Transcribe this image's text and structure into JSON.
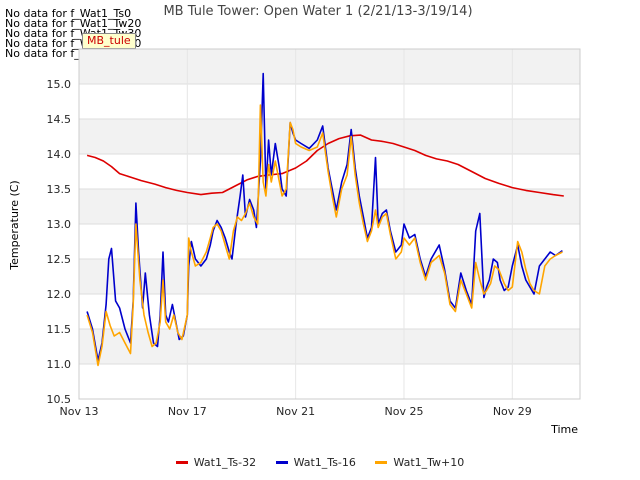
{
  "no_data_messages": [
    "No data for f_Wat1_Ts0",
    "No data for f_Wat1_Tw20",
    "No data for f_Wat1_Tw30",
    "No data for f_Wat1_Tw40",
    "No data for f_Wat1_Tw50"
  ],
  "badge_text": "MB_tule",
  "colors": {
    "Wat1_Ts-32": "#dd0000",
    "Wat1_Ts-16": "#0000cc",
    "Wat1_Tw+10": "#ffa500"
  },
  "chart_data": {
    "type": "line",
    "title": "MB Tule Tower: Open Water 1 (2/21/13-3/19/14)",
    "xlabel": "Time",
    "ylabel": "Temperature (C)",
    "xlim": [
      13,
      31.5
    ],
    "ylim": [
      10.5,
      15.5
    ],
    "xticks": [
      13,
      17,
      21,
      25,
      29
    ],
    "xtick_labels": [
      "Nov 13",
      "Nov 17",
      "Nov 21",
      "Nov 25",
      "Nov 29"
    ],
    "yticks": [
      10.5,
      11.0,
      11.5,
      12.0,
      12.5,
      13.0,
      13.5,
      14.0,
      14.5,
      15.0
    ],
    "ytick_labels": [
      "10.5",
      "11.0",
      "11.5",
      "12.0",
      "12.5",
      "13.0",
      "13.5",
      "14.0",
      "14.5",
      "15.0"
    ],
    "grid": "horizontal bands",
    "legend_position": "bottom",
    "series": [
      {
        "name": "Wat1_Ts-32",
        "color": "#dd0000",
        "x": [
          13.3,
          13.6,
          13.9,
          14.2,
          14.5,
          14.9,
          15.3,
          15.8,
          16.2,
          16.6,
          17.0,
          17.5,
          17.9,
          18.3,
          18.8,
          19.2,
          19.6,
          20.0,
          20.5,
          21.0,
          21.4,
          21.8,
          22.2,
          22.6,
          23.0,
          23.4,
          23.8,
          24.2,
          24.6,
          25.0,
          25.4,
          25.8,
          26.2,
          26.6,
          27.0,
          27.5,
          28.0,
          28.5,
          29.0,
          29.5,
          30.0,
          30.5,
          30.9
        ],
        "y": [
          13.98,
          13.95,
          13.9,
          13.82,
          13.72,
          13.67,
          13.62,
          13.57,
          13.52,
          13.48,
          13.45,
          13.42,
          13.44,
          13.45,
          13.55,
          13.63,
          13.68,
          13.7,
          13.72,
          13.8,
          13.9,
          14.05,
          14.15,
          14.22,
          14.26,
          14.27,
          14.2,
          14.18,
          14.15,
          14.1,
          14.05,
          13.98,
          13.93,
          13.9,
          13.85,
          13.75,
          13.65,
          13.58,
          13.52,
          13.48,
          13.45,
          13.42,
          13.4
        ]
      },
      {
        "name": "Wat1_Ts-16",
        "color": "#0000cc",
        "x": [
          13.3,
          13.5,
          13.7,
          13.85,
          14.0,
          14.1,
          14.2,
          14.35,
          14.5,
          14.7,
          14.9,
          15.0,
          15.1,
          15.2,
          15.35,
          15.45,
          15.6,
          15.75,
          15.9,
          16.0,
          16.1,
          16.2,
          16.3,
          16.45,
          16.6,
          16.7,
          16.85,
          17.0,
          17.05,
          17.15,
          17.3,
          17.5,
          17.7,
          17.85,
          17.95,
          18.1,
          18.25,
          18.4,
          18.55,
          18.65,
          18.8,
          18.95,
          19.05,
          19.15,
          19.3,
          19.45,
          19.55,
          19.7,
          19.8,
          19.9,
          20.0,
          20.1,
          20.25,
          20.4,
          20.5,
          20.65,
          20.8,
          20.9,
          21.0,
          21.2,
          21.5,
          21.8,
          22.0,
          22.2,
          22.35,
          22.5,
          22.7,
          22.9,
          23.05,
          23.2,
          23.35,
          23.5,
          23.65,
          23.8,
          23.95,
          24.05,
          24.2,
          24.35,
          24.5,
          24.7,
          24.9,
          25.0,
          25.2,
          25.4,
          25.6,
          25.8,
          26.0,
          26.3,
          26.5,
          26.7,
          26.9,
          27.1,
          27.3,
          27.5,
          27.65,
          27.8,
          27.95,
          28.05,
          28.15,
          28.3,
          28.45,
          28.55,
          28.7,
          28.85,
          29.0,
          29.2,
          29.35,
          29.5,
          29.65,
          29.8,
          30.0,
          30.2,
          30.4,
          30.6,
          30.85
        ],
        "y": [
          11.75,
          11.5,
          11.05,
          11.3,
          11.85,
          12.5,
          12.65,
          11.9,
          11.8,
          11.5,
          11.3,
          11.9,
          13.3,
          12.6,
          11.8,
          12.3,
          11.7,
          11.3,
          11.25,
          11.7,
          12.6,
          11.7,
          11.6,
          11.85,
          11.55,
          11.35,
          11.4,
          11.7,
          12.4,
          12.75,
          12.5,
          12.4,
          12.5,
          12.7,
          12.9,
          13.05,
          12.95,
          12.8,
          12.6,
          12.5,
          13.0,
          13.4,
          13.7,
          13.1,
          13.35,
          13.2,
          12.95,
          13.9,
          15.15,
          13.5,
          14.2,
          13.7,
          14.15,
          13.8,
          13.5,
          13.4,
          14.45,
          14.3,
          14.2,
          14.15,
          14.08,
          14.2,
          14.4,
          13.8,
          13.5,
          13.2,
          13.6,
          13.85,
          14.35,
          13.8,
          13.4,
          13.1,
          12.8,
          12.95,
          13.95,
          13.0,
          13.15,
          13.2,
          12.9,
          12.6,
          12.7,
          13.0,
          12.8,
          12.85,
          12.5,
          12.25,
          12.5,
          12.7,
          12.35,
          11.9,
          11.8,
          12.3,
          12.05,
          11.85,
          12.9,
          13.15,
          11.95,
          12.1,
          12.2,
          12.5,
          12.45,
          12.2,
          12.05,
          12.1,
          12.4,
          12.7,
          12.4,
          12.2,
          12.1,
          12.0,
          12.4,
          12.5,
          12.6,
          12.55,
          12.62
        ],
        "_note": ""
      },
      {
        "name": "Wat1_Tw+10",
        "color": "#ffa500",
        "x": [
          13.3,
          13.5,
          13.7,
          13.85,
          14.0,
          14.15,
          14.3,
          14.5,
          14.7,
          14.9,
          15.0,
          15.1,
          15.25,
          15.4,
          15.55,
          15.7,
          15.85,
          16.0,
          16.1,
          16.2,
          16.35,
          16.5,
          16.65,
          16.8,
          17.0,
          17.05,
          17.15,
          17.3,
          17.5,
          17.7,
          17.85,
          17.95,
          18.1,
          18.25,
          18.4,
          18.55,
          18.7,
          18.85,
          19.0,
          19.15,
          19.3,
          19.45,
          19.6,
          19.7,
          19.8,
          19.9,
          20.0,
          20.1,
          20.25,
          20.4,
          20.5,
          20.65,
          20.8,
          20.9,
          21.0,
          21.2,
          21.5,
          21.8,
          22.0,
          22.2,
          22.35,
          22.5,
          22.7,
          22.9,
          23.05,
          23.2,
          23.35,
          23.5,
          23.65,
          23.8,
          23.95,
          24.05,
          24.2,
          24.35,
          24.5,
          24.7,
          24.9,
          25.0,
          25.2,
          25.4,
          25.6,
          25.8,
          26.0,
          26.3,
          26.5,
          26.7,
          26.9,
          27.1,
          27.3,
          27.5,
          27.65,
          27.8,
          27.95,
          28.05,
          28.2,
          28.35,
          28.5,
          28.7,
          28.85,
          29.0,
          29.2,
          29.35,
          29.5,
          29.65,
          29.8,
          30.0,
          30.2,
          30.4,
          30.6,
          30.85
        ],
        "y": [
          11.7,
          11.45,
          10.98,
          11.25,
          11.75,
          11.55,
          11.4,
          11.45,
          11.3,
          11.15,
          11.85,
          13.0,
          12.2,
          11.7,
          11.45,
          11.25,
          11.3,
          11.6,
          12.2,
          11.6,
          11.5,
          11.7,
          11.45,
          11.35,
          11.7,
          12.8,
          12.6,
          12.4,
          12.45,
          12.6,
          12.8,
          12.95,
          13.0,
          12.9,
          12.7,
          12.5,
          12.9,
          13.1,
          13.05,
          13.15,
          13.3,
          13.1,
          13.0,
          14.7,
          13.6,
          13.4,
          13.85,
          13.6,
          13.9,
          13.6,
          13.4,
          13.5,
          14.45,
          14.35,
          14.15,
          14.1,
          14.05,
          14.1,
          14.3,
          13.75,
          13.4,
          13.1,
          13.5,
          13.7,
          14.25,
          13.7,
          13.3,
          13.0,
          12.75,
          12.9,
          13.2,
          12.95,
          13.1,
          13.15,
          12.85,
          12.5,
          12.6,
          12.8,
          12.7,
          12.8,
          12.45,
          12.2,
          12.45,
          12.55,
          12.3,
          11.85,
          11.75,
          12.2,
          12.0,
          11.8,
          12.45,
          12.2,
          12.0,
          12.05,
          12.15,
          12.4,
          12.35,
          12.15,
          12.05,
          12.1,
          12.75,
          12.6,
          12.35,
          12.15,
          12.05,
          12.0,
          12.4,
          12.5,
          12.55,
          12.6
        ]
      }
    ]
  }
}
